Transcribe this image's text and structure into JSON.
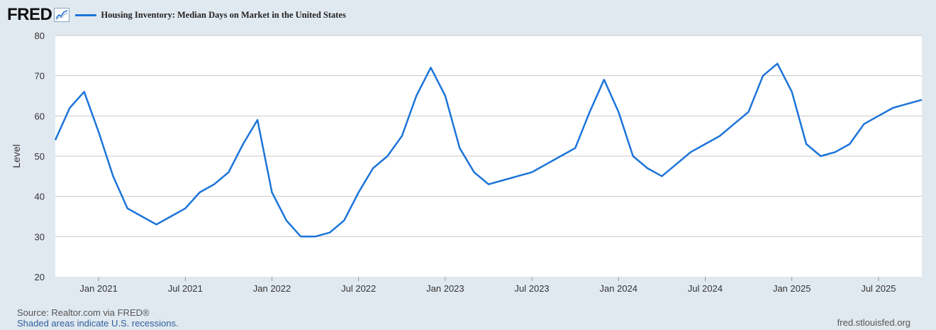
{
  "header": {
    "logo": "FRED",
    "series_label": "Housing Inventory: Median Days on Market in the United States",
    "line_color": "#1c74d9"
  },
  "footer": {
    "source": "Source: Realtor.com via FRED®",
    "recession_note": "Shaded areas indicate U.S. recessions.",
    "site": "fred.stlouisfed.org"
  },
  "chart_data": {
    "type": "line",
    "title": "Housing Inventory: Median Days on Market in the United States",
    "ylabel": "Level",
    "xlabel": "",
    "ylim": [
      20,
      80
    ],
    "yticks": [
      20,
      30,
      40,
      50,
      60,
      70,
      80
    ],
    "xlim": [
      "2020-10",
      "2025-10"
    ],
    "xticks": [
      {
        "date": "2021-01",
        "label": "Jan 2021"
      },
      {
        "date": "2021-07",
        "label": "Jul 2021"
      },
      {
        "date": "2022-01",
        "label": "Jan 2022"
      },
      {
        "date": "2022-07",
        "label": "Jul 2022"
      },
      {
        "date": "2023-01",
        "label": "Jan 2023"
      },
      {
        "date": "2023-07",
        "label": "Jul 2023"
      },
      {
        "date": "2024-01",
        "label": "Jan 2024"
      },
      {
        "date": "2024-07",
        "label": "Jul 2024"
      },
      {
        "date": "2025-01",
        "label": "Jan 2025"
      },
      {
        "date": "2025-07",
        "label": "Jul 2025"
      }
    ],
    "grid": true,
    "series": [
      {
        "name": "Housing Inventory: Median Days on Market in the United States",
        "color": "#1c74d9",
        "points": [
          [
            "2020-10",
            54
          ],
          [
            "2020-11",
            62
          ],
          [
            "2020-12",
            66
          ],
          [
            "2021-01",
            56
          ],
          [
            "2021-02",
            45
          ],
          [
            "2021-03",
            37
          ],
          [
            "2021-04",
            35
          ],
          [
            "2021-05",
            33
          ],
          [
            "2021-06",
            35
          ],
          [
            "2021-07",
            37
          ],
          [
            "2021-08",
            41
          ],
          [
            "2021-09",
            43
          ],
          [
            "2021-10",
            46
          ],
          [
            "2021-11",
            53
          ],
          [
            "2021-12",
            59
          ],
          [
            "2022-01",
            41
          ],
          [
            "2022-02",
            34
          ],
          [
            "2022-03",
            30
          ],
          [
            "2022-04",
            30
          ],
          [
            "2022-05",
            31
          ],
          [
            "2022-06",
            34
          ],
          [
            "2022-07",
            41
          ],
          [
            "2022-08",
            47
          ],
          [
            "2022-09",
            50
          ],
          [
            "2022-10",
            55
          ],
          [
            "2022-11",
            65
          ],
          [
            "2022-12",
            72
          ],
          [
            "2023-01",
            65
          ],
          [
            "2023-02",
            52
          ],
          [
            "2023-03",
            46
          ],
          [
            "2023-04",
            43
          ],
          [
            "2023-05",
            44
          ],
          [
            "2023-06",
            45
          ],
          [
            "2023-07",
            46
          ],
          [
            "2023-08",
            48
          ],
          [
            "2023-09",
            50
          ],
          [
            "2023-10",
            52
          ],
          [
            "2023-11",
            61
          ],
          [
            "2023-12",
            69
          ],
          [
            "2024-01",
            61
          ],
          [
            "2024-02",
            50
          ],
          [
            "2024-03",
            47
          ],
          [
            "2024-04",
            45
          ],
          [
            "2024-05",
            48
          ],
          [
            "2024-06",
            51
          ],
          [
            "2024-07",
            53
          ],
          [
            "2024-08",
            55
          ],
          [
            "2024-09",
            58
          ],
          [
            "2024-10",
            61
          ],
          [
            "2024-11",
            70
          ],
          [
            "2024-12",
            73
          ],
          [
            "2025-01",
            66
          ],
          [
            "2025-02",
            53
          ],
          [
            "2025-03",
            50
          ],
          [
            "2025-04",
            51
          ],
          [
            "2025-05",
            53
          ],
          [
            "2025-06",
            58
          ],
          [
            "2025-07",
            60
          ],
          [
            "2025-08",
            62
          ],
          [
            "2025-09",
            63
          ],
          [
            "2025-10",
            64
          ]
        ]
      }
    ]
  }
}
